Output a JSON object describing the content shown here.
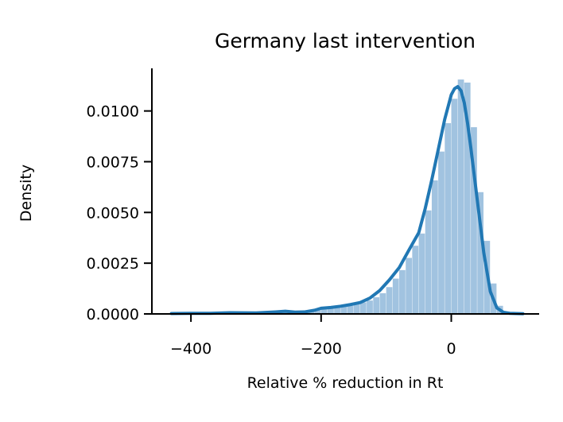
{
  "chart_data": {
    "type": "area",
    "title": "Germany last intervention",
    "xlabel": "Relative % reduction in Rt",
    "ylabel": "Density",
    "xlim": [
      -460,
      135
    ],
    "ylim": [
      0,
      0.0121
    ],
    "x_ticks": [
      -400,
      -200,
      0
    ],
    "x_tick_labels": [
      "−400",
      "−200",
      "0"
    ],
    "y_ticks": [
      0.0,
      0.0025,
      0.005,
      0.0075,
      0.01
    ],
    "y_tick_labels": [
      "0.0000",
      "0.0025",
      "0.0050",
      "0.0075",
      "0.0100"
    ],
    "grid": false,
    "colors": {
      "histogram": "#a1c3e0",
      "kde": "#2178b4"
    },
    "histogram": {
      "bin_width": 10,
      "bins": [
        {
          "x0": -430,
          "d": 2e-05
        },
        {
          "x0": -420,
          "d": 2e-05
        },
        {
          "x0": -410,
          "d": 3e-05
        },
        {
          "x0": -400,
          "d": 3e-05
        },
        {
          "x0": -390,
          "d": 3e-05
        },
        {
          "x0": -380,
          "d": 3e-05
        },
        {
          "x0": -370,
          "d": 4e-05
        },
        {
          "x0": -360,
          "d": 4e-05
        },
        {
          "x0": -350,
          "d": 5e-05
        },
        {
          "x0": -340,
          "d": 6e-05
        },
        {
          "x0": -330,
          "d": 5e-05
        },
        {
          "x0": -320,
          "d": 5e-05
        },
        {
          "x0": -310,
          "d": 6e-05
        },
        {
          "x0": -300,
          "d": 6e-05
        },
        {
          "x0": -290,
          "d": 7e-05
        },
        {
          "x0": -280,
          "d": 8e-05
        },
        {
          "x0": -270,
          "d": 0.00012
        },
        {
          "x0": -260,
          "d": 0.00013
        },
        {
          "x0": -250,
          "d": 9e-05
        },
        {
          "x0": -240,
          "d": 9e-05
        },
        {
          "x0": -230,
          "d": 0.0001
        },
        {
          "x0": -220,
          "d": 0.00016
        },
        {
          "x0": -210,
          "d": 0.00023
        },
        {
          "x0": -200,
          "d": 0.00027
        },
        {
          "x0": -190,
          "d": 0.00028
        },
        {
          "x0": -180,
          "d": 0.00036
        },
        {
          "x0": -170,
          "d": 0.0004
        },
        {
          "x0": -160,
          "d": 0.0004
        },
        {
          "x0": -150,
          "d": 0.00049
        },
        {
          "x0": -140,
          "d": 0.00057
        },
        {
          "x0": -130,
          "d": 0.00066
        },
        {
          "x0": -120,
          "d": 0.00082
        },
        {
          "x0": -110,
          "d": 0.00102
        },
        {
          "x0": -100,
          "d": 0.00132
        },
        {
          "x0": -90,
          "d": 0.00174
        },
        {
          "x0": -80,
          "d": 0.00216
        },
        {
          "x0": -70,
          "d": 0.00276
        },
        {
          "x0": -60,
          "d": 0.00336
        },
        {
          "x0": -50,
          "d": 0.00396
        },
        {
          "x0": -40,
          "d": 0.0051
        },
        {
          "x0": -30,
          "d": 0.00658
        },
        {
          "x0": -20,
          "d": 0.008
        },
        {
          "x0": -10,
          "d": 0.0094
        },
        {
          "x0": 0,
          "d": 0.0106
        },
        {
          "x0": 10,
          "d": 0.01155
        },
        {
          "x0": 20,
          "d": 0.0114
        },
        {
          "x0": 30,
          "d": 0.0092
        },
        {
          "x0": 40,
          "d": 0.006
        },
        {
          "x0": 50,
          "d": 0.0036
        },
        {
          "x0": 60,
          "d": 0.0015
        },
        {
          "x0": 70,
          "d": 0.0004
        },
        {
          "x0": 80,
          "d": 8e-05
        },
        {
          "x0": 90,
          "d": 2e-05
        }
      ]
    },
    "kde": {
      "x": [
        -430,
        -400,
        -370,
        -340,
        -300,
        -270,
        -255,
        -240,
        -225,
        -210,
        -200,
        -185,
        -170,
        -155,
        -140,
        -125,
        -110,
        -95,
        -80,
        -65,
        -50,
        -40,
        -30,
        -20,
        -10,
        0,
        5,
        10,
        15,
        20,
        25,
        30,
        40,
        50,
        60,
        70,
        80,
        90,
        100,
        110
      ],
      "y": [
        2e-05,
        3e-05,
        3e-05,
        6e-05,
        5e-05,
        0.0001,
        0.00013,
        9e-05,
        0.0001,
        0.00018,
        0.00028,
        0.00032,
        0.00038,
        0.00046,
        0.00056,
        0.00078,
        0.00115,
        0.00168,
        0.00228,
        0.00315,
        0.004,
        0.0052,
        0.0066,
        0.0081,
        0.0096,
        0.0108,
        0.0111,
        0.0112,
        0.011,
        0.0104,
        0.0094,
        0.0082,
        0.0056,
        0.003,
        0.0011,
        0.0003,
        8e-05,
        3e-05,
        2e-05,
        1e-05
      ]
    }
  }
}
